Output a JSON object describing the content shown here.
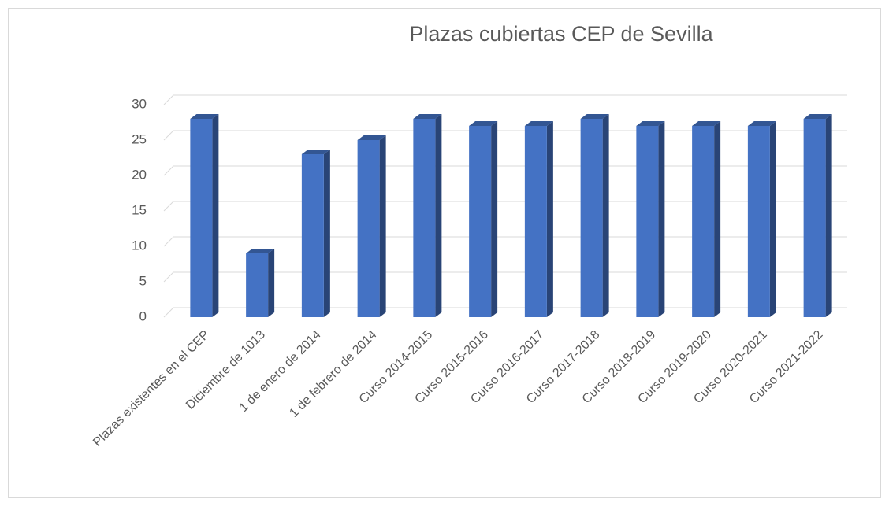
{
  "chart_data": {
    "type": "bar",
    "title": "Plazas cubiertas CEP de Sevilla",
    "categories": [
      "Plazas existentes en el CEP",
      "Diciembre de 1013",
      "1 de enero de 2014",
      "1 de febrero de 2014",
      "Curso 2014-2015",
      "Curso 2015-2016",
      "Curso 2016-2017",
      "Curso 2017-2018",
      "Curso 2018-2019",
      "Curso 2019-2020",
      "Curso 2020-2021",
      "Curso 2021-2022"
    ],
    "values": [
      28,
      9,
      23,
      25,
      28,
      27,
      27,
      28,
      27,
      27,
      27,
      28
    ],
    "color": "#4472c4",
    "ylim": [
      0,
      30
    ],
    "yticks": [
      0,
      5,
      10,
      15,
      20,
      25,
      30
    ],
    "grid": true
  }
}
